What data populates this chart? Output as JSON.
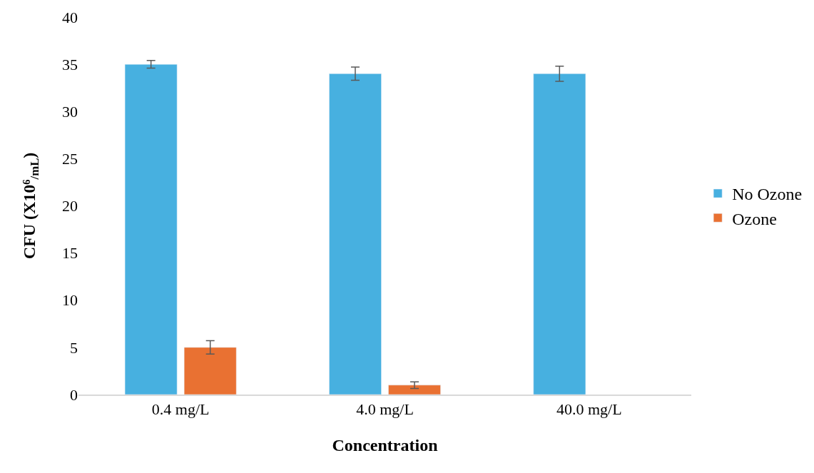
{
  "chart_data": {
    "type": "bar",
    "xlabel": "Concentration",
    "ylabel": "CFU (X10⁶$_{/mL}$)",
    "categories": [
      "0.4 mg/L",
      "4.0 mg/L",
      "40.0 mg/L"
    ],
    "series": [
      {
        "name": "No Ozone",
        "color": "#47b0e0",
        "values": [
          35,
          34,
          34
        ],
        "errors": [
          0.4,
          0.7,
          0.8
        ]
      },
      {
        "name": "Ozone",
        "color": "#e97132",
        "values": [
          5,
          1,
          null
        ],
        "errors": [
          0.7,
          0.35,
          null
        ]
      }
    ],
    "ylim": [
      0,
      40
    ],
    "yticks": [
      0,
      5,
      10,
      15,
      20,
      25,
      30,
      35,
      40
    ],
    "grid": false,
    "legend": "right"
  }
}
